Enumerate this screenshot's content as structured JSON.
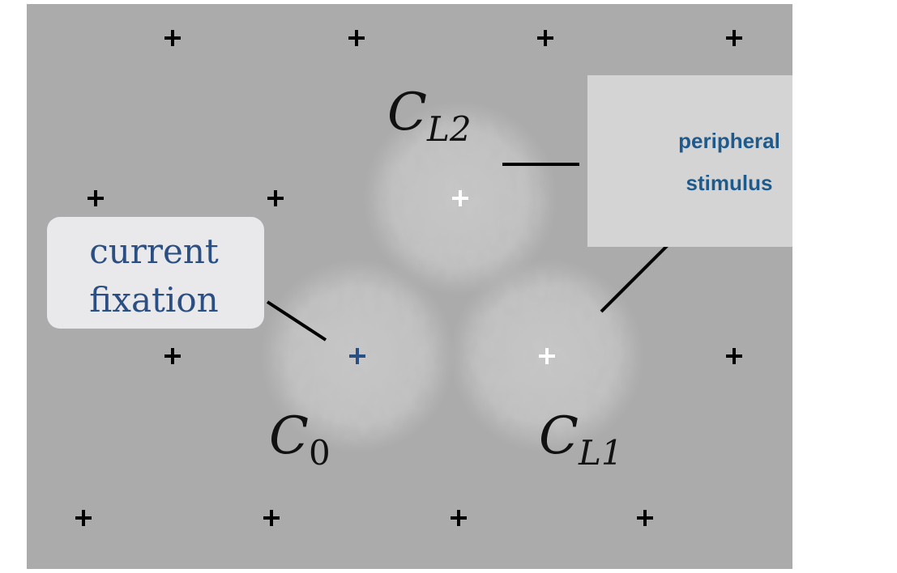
{
  "labels": {
    "c_l2": {
      "base": "C",
      "sub": "L2"
    },
    "c_0": {
      "base": "C",
      "sub": "0"
    },
    "c_l1": {
      "base": "C",
      "sub": "L1"
    }
  },
  "callouts": {
    "current_fixation": [
      "current",
      "fixation"
    ],
    "peripheral_stimulus": [
      "peripheral",
      "stimulus"
    ]
  }
}
